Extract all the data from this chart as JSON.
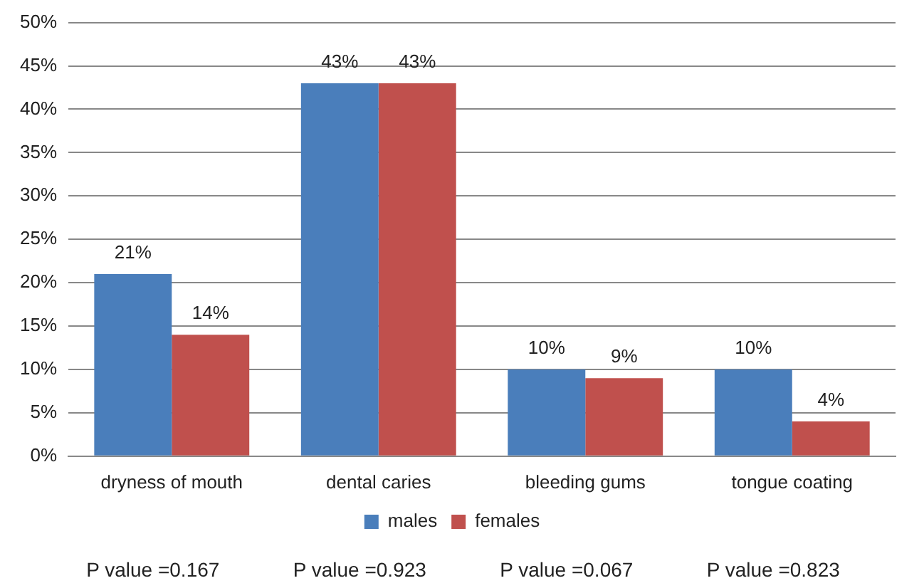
{
  "chart_data": {
    "type": "bar",
    "categories": [
      "dryness of mouth",
      "dental caries",
      "bleeding gums",
      "tongue coating"
    ],
    "series": [
      {
        "name": "males",
        "color": "#4a7ebb",
        "values": [
          21,
          43,
          10,
          10
        ],
        "value_labels": [
          "21%",
          "43%",
          "10%",
          "10%"
        ]
      },
      {
        "name": "females",
        "color": "#c0504d",
        "values": [
          14,
          43,
          9,
          4
        ],
        "value_labels": [
          "14%",
          "43%",
          "9%",
          "4%"
        ]
      }
    ],
    "ylim": [
      0,
      50
    ],
    "yticks": [
      {
        "value": 0,
        "label": "0%"
      },
      {
        "value": 5,
        "label": "5%"
      },
      {
        "value": 10,
        "label": "10%"
      },
      {
        "value": 15,
        "label": "15%"
      },
      {
        "value": 20,
        "label": "20%"
      },
      {
        "value": 25,
        "label": "25%"
      },
      {
        "value": 30,
        "label": "30%"
      },
      {
        "value": 35,
        "label": "35%"
      },
      {
        "value": 40,
        "label": "40%"
      },
      {
        "value": 45,
        "label": "45%"
      },
      {
        "value": 50,
        "label": "50%"
      }
    ],
    "grid": "y",
    "legend": "bottom",
    "annotations": [
      "P value =0.167",
      "P value =0.923",
      "P value =0.067",
      "P value =0.823"
    ]
  }
}
